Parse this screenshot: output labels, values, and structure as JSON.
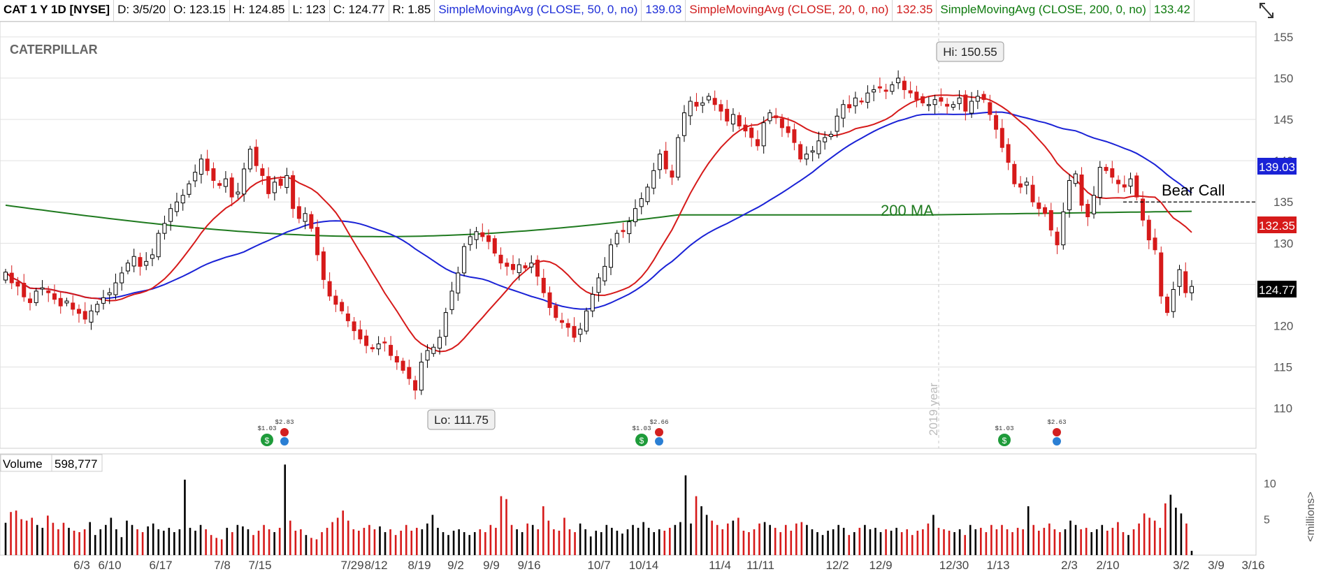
{
  "header": {
    "symbol": "CAT 1 Y 1D [NYSE]",
    "date": "D: 3/5/20",
    "open": "O: 123.15",
    "high": "H: 124.85",
    "low": "L: 123",
    "close": "C: 124.77",
    "range": "R: 1.85",
    "sma50_label": "SimpleMovingAvg (CLOSE, 50, 0, no)",
    "sma50_value": "139.03",
    "sma20_label": "SimpleMovingAvg (CLOSE, 20, 0, no)",
    "sma20_value": "132.35",
    "sma200_label": "SimpleMovingAvg (CLOSE, 200, 0, no)",
    "sma200_value": "133.42"
  },
  "logo_text": "CATERPILLAR",
  "colors": {
    "up": "#000000",
    "down": "#d61a1a",
    "sma50": "#1a22d6",
    "sma20": "#d61a1a",
    "sma200": "#1f7a1f",
    "grid": "#e0e0e0"
  },
  "chart_data": [
    {
      "type": "candlestick",
      "price_axis": {
        "ylim": [
          106,
          156
        ],
        "ticks": [
          110,
          115,
          120,
          125,
          130,
          135,
          140,
          145,
          150,
          155
        ]
      },
      "x_axis": {
        "tick_labels": [
          "6/3",
          "6/10",
          "6/17",
          "7/8",
          "7/15",
          "7/29",
          "8/12",
          "8/19",
          "9/2",
          "9/9",
          "9/16",
          "10/7",
          "10/14",
          "11/4",
          "11/11",
          "12/2",
          "12/9",
          "12/30",
          "1/13",
          "2/3",
          "2/10",
          "3/2",
          "3/9",
          "3/16"
        ]
      },
      "year_divider_label": "2019 year",
      "axis_badges": {
        "sma50": "139.03",
        "sma20": "132.35",
        "last": "124.77"
      },
      "annotations": {
        "high": "Hi: 150.55",
        "low": "Lo: 111.75",
        "ma200": "200 MA",
        "bear_call": "Bear Call",
        "bear_call_level": 135
      },
      "events": [
        {
          "dividend": "$1.03",
          "earnings": "$2.83"
        },
        {
          "dividend": "$1.03",
          "earnings": "$2.66"
        },
        {
          "dividend": "$1.03",
          "earnings": "$2.63"
        }
      ],
      "close": [
        126.5,
        125.2,
        124.8,
        123.5,
        122.8,
        124.2,
        124.6,
        124.0,
        123.2,
        122.4,
        123.0,
        122.0,
        121.5,
        120.8,
        121.8,
        122.6,
        123.4,
        124.0,
        125.2,
        126.4,
        127.6,
        128.4,
        127.2,
        127.8,
        128.6,
        131.2,
        132.4,
        134.2,
        135.0,
        135.8,
        137.2,
        138.6,
        140.2,
        138.8,
        137.6,
        137.0,
        137.8,
        135.6,
        136.2,
        139.0,
        141.4,
        139.4,
        138.2,
        136.0,
        137.4,
        137.0,
        138.2,
        134.2,
        133.0,
        133.6,
        131.8,
        128.6,
        125.6,
        123.6,
        122.6,
        121.8,
        120.6,
        119.4,
        118.4,
        117.6,
        117.2,
        117.8,
        118.0,
        116.4,
        115.6,
        114.6,
        113.6,
        112.2,
        115.6,
        117.0,
        117.4,
        118.6,
        121.6,
        124.2,
        126.4,
        129.6,
        130.8,
        131.4,
        130.8,
        130.2,
        128.8,
        127.6,
        127.2,
        126.8,
        127.4,
        127.0,
        127.6,
        126.0,
        124.0,
        122.2,
        121.0,
        120.4,
        119.8,
        118.6,
        119.6,
        121.8,
        123.8,
        125.8,
        127.2,
        129.8,
        131.2,
        131.4,
        132.6,
        134.2,
        135.4,
        136.8,
        138.8,
        140.8,
        139.0,
        138.0,
        142.8,
        145.8,
        147.2,
        146.6,
        147.0,
        147.8,
        146.8,
        146.0,
        144.8,
        145.6,
        144.2,
        143.6,
        142.8,
        141.8,
        144.6,
        145.8,
        145.2,
        144.0,
        143.4,
        142.2,
        140.2,
        140.8,
        141.2,
        142.4,
        142.8,
        143.2,
        145.4,
        146.8,
        146.4,
        147.6,
        147.2,
        148.2,
        148.6,
        148.8,
        148.4,
        149.2,
        150.0,
        148.6,
        148.2,
        147.4,
        147.0,
        146.8,
        147.4,
        147.2,
        146.6,
        146.8,
        147.6,
        146.0,
        147.2,
        147.8,
        147.4,
        145.6,
        143.8,
        141.6,
        139.8,
        137.2,
        136.8,
        137.4,
        135.0,
        134.2,
        133.6,
        131.6,
        129.8,
        133.8,
        137.6,
        138.4,
        134.6,
        133.2,
        135.8,
        139.2,
        138.8,
        138.0,
        137.2,
        136.8,
        137.8,
        135.6,
        132.8,
        130.4,
        129.2,
        123.6,
        121.6,
        124.4,
        126.8,
        124.0,
        124.77
      ]
    },
    {
      "type": "bar",
      "title": "Volume",
      "value_label": "598,777",
      "y_unit": "<millions>",
      "ylim": [
        0,
        13.5
      ],
      "y_ticks": [
        5,
        10
      ],
      "values": [
        4.5,
        6,
        6.2,
        5,
        4.8,
        5.2,
        4.2,
        3.8,
        5.5,
        4.5,
        3.6,
        4.5,
        3.8,
        3.4,
        3.2,
        3.6,
        4.6,
        2.8,
        3.6,
        4.2,
        5.2,
        3.6,
        2.5,
        4.8,
        4.2,
        3.6,
        3.2,
        4,
        4.4,
        3.6,
        3.4,
        3.8,
        3.2,
        3.6,
        10.5,
        3.8,
        3.4,
        4.2,
        3.6,
        2.8,
        2.4,
        2.2,
        3.8,
        3.2,
        4.2,
        4,
        3.6,
        2.8,
        3.4,
        4.2,
        3.6,
        3.2,
        3.8,
        12.6,
        4.8,
        3.4,
        3.6,
        2.8,
        2.4,
        2.2,
        3.2,
        3.8,
        4.6,
        5.2,
        6.2,
        4.8,
        3.6,
        3.4,
        3.8,
        4.2,
        3.6,
        4,
        3.2,
        3.6,
        2.8,
        3.4,
        4.2,
        3.4,
        3.8,
        3.6,
        4.4,
        5.6,
        3.8,
        3.2,
        2.8,
        3.4,
        3.6,
        3.2,
        2.8,
        3.2,
        3.6,
        3.2,
        4.2,
        3.8,
        8.2,
        7.8,
        4.2,
        3.6,
        3.2,
        4.4,
        4.2,
        3.6,
        6.8,
        4.8,
        3.6,
        3.4,
        5.2,
        3.6,
        3.2,
        4.4,
        3.6,
        2.6,
        3.4,
        3.2,
        4.2,
        3.8,
        3.4,
        3,
        3.6,
        4.2,
        3.8,
        4.6,
        3.8,
        3.2,
        3.6,
        3.4,
        3.8,
        4.2,
        4.6,
        11.1,
        4.4,
        8.2,
        6.8,
        5.6,
        4.8,
        4.2,
        3.6,
        4.4,
        4.8,
        5.2,
        3.4,
        3.2,
        3.6,
        4.4,
        4.6,
        4.2,
        3.8,
        3.2,
        4.2,
        3.4,
        4.4,
        4.6,
        4.2,
        3.6,
        3.2,
        2.8,
        3.4,
        3.6,
        4.2,
        3.8,
        2.8,
        3.2,
        3.8,
        4.2,
        3.6,
        3.8,
        3.2,
        3.6,
        3.4,
        3.8,
        3.2,
        3.6,
        2.8,
        3.4,
        3.6,
        4.4,
        5.6,
        3.8,
        3.6,
        3.4,
        3.2,
        3.6,
        2.8,
        4.2,
        3.6,
        3.8,
        3.2,
        4.2,
        3.6,
        4.2,
        3.6,
        3.2,
        3.8,
        3.6,
        6.8,
        4.2,
        3.4,
        3.8,
        4.4,
        3.6,
        3.2,
        3.6,
        4.8,
        4.2,
        3.6,
        3.8,
        3.2,
        3.6,
        4.2,
        3.4,
        3.8,
        4.6,
        3.2,
        2.8,
        3.6,
        4.4,
        5.8,
        5.2,
        4.8,
        3.8,
        7.2,
        8.4,
        6.6,
        5.8,
        4.4,
        0.6
      ]
    }
  ]
}
